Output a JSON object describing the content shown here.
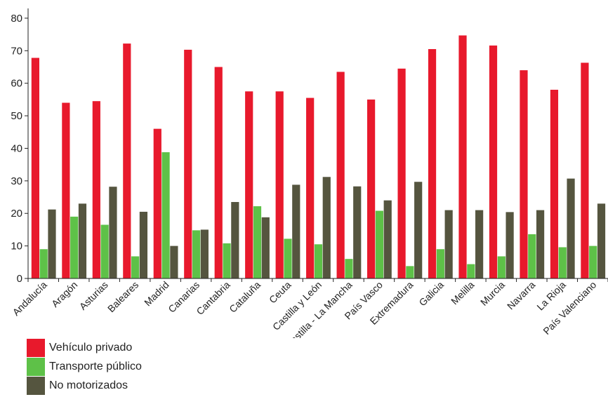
{
  "chart_data": {
    "type": "bar",
    "categories": [
      "Andalucía",
      "Aragón",
      "Asturias",
      "Baleares",
      "Madrid",
      "Canarias",
      "Cantabria",
      "Cataluña",
      "Ceuta",
      "Castilla y León",
      "Castilla - La Mancha",
      "País Vasco",
      "Extremadura",
      "Galicia",
      "Melilla",
      "Murcia",
      "Navarra",
      "La Rioja",
      "País Valenciano"
    ],
    "series": [
      {
        "name": "Vehículo privado",
        "color": "#e8192c",
        "values": [
          67.8,
          54,
          54.5,
          72.2,
          46,
          70.3,
          65,
          57.5,
          57.5,
          55.5,
          63.5,
          55,
          64.5,
          70.5,
          74.7,
          71.6,
          64,
          58,
          66.3
        ]
      },
      {
        "name": "Transporte público",
        "color": "#5ec148",
        "values": [
          9,
          19,
          16.5,
          6.8,
          38.8,
          14.8,
          10.8,
          22.2,
          12.2,
          10.5,
          6,
          20.8,
          3.8,
          9,
          4.4,
          6.8,
          13.6,
          9.6,
          10
        ]
      },
      {
        "name": "No motorizados",
        "color": "#55553f",
        "values": [
          21.2,
          23,
          28.2,
          20.5,
          10,
          15,
          23.5,
          18.8,
          28.8,
          31.2,
          28.3,
          24,
          29.7,
          21,
          21,
          20.4,
          21,
          30.7,
          23
        ]
      }
    ],
    "yticks": [
      0,
      10,
      20,
      30,
      40,
      50,
      60,
      70,
      80
    ],
    "ylim": [
      0,
      83
    ],
    "grid": false,
    "legend_position": "bottom-left"
  }
}
